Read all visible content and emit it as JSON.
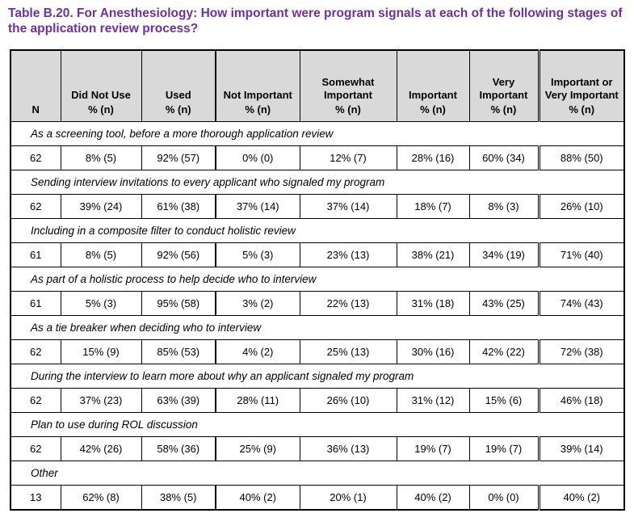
{
  "title": "Table B.20. For Anesthesiology: How important were program signals at each of the following stages of the application review process?",
  "colors": {
    "title_text": "#7030A0",
    "header_background": "#D9D9D9",
    "border": "#000000"
  },
  "table": {
    "n_label": "N",
    "columns": [
      {
        "name": "Did Not Use",
        "sub": "% (n)"
      },
      {
        "name": "Used",
        "sub": "% (n)"
      },
      {
        "name": "Not Important",
        "sub": "% (n)"
      },
      {
        "name": "Somewhat Important",
        "sub": "% (n)"
      },
      {
        "name": "Important",
        "sub": "% (n)"
      },
      {
        "name": "Very Important",
        "sub": "% (n)"
      },
      {
        "name": "Important or Very Important",
        "sub": "% (n)"
      }
    ],
    "sections": [
      {
        "label": "As a screening tool, before a more thorough application review",
        "values": [
          "62",
          "8% (5)",
          "92% (57)",
          "0% (0)",
          "12% (7)",
          "28% (16)",
          "60% (34)",
          "88% (50)"
        ]
      },
      {
        "label": "Sending interview invitations to every applicant who signaled my program",
        "values": [
          "62",
          "39% (24)",
          "61% (38)",
          "37% (14)",
          "37% (14)",
          "18% (7)",
          "8% (3)",
          "26% (10)"
        ]
      },
      {
        "label": "Including in a composite filter to conduct holistic review",
        "values": [
          "61",
          "8% (5)",
          "92% (56)",
          "5% (3)",
          "23% (13)",
          "38% (21)",
          "34% (19)",
          "71% (40)"
        ]
      },
      {
        "label": "As part of a holistic process to help decide who to interview",
        "values": [
          "61",
          "5% (3)",
          "95% (58)",
          "3% (2)",
          "22% (13)",
          "31% (18)",
          "43% (25)",
          "74% (43)"
        ]
      },
      {
        "label": "As a tie breaker when deciding who to interview",
        "values": [
          "62",
          "15% (9)",
          "85% (53)",
          "4% (2)",
          "25% (13)",
          "30% (16)",
          "42% (22)",
          "72% (38)"
        ]
      },
      {
        "label": "During the interview to learn more about why an applicant signaled my program",
        "values": [
          "62",
          "37% (23)",
          "63% (39)",
          "28% (11)",
          "26% (10)",
          "31% (12)",
          "15% (6)",
          "46% (18)"
        ]
      },
      {
        "label": "Plan to use during ROL discussion",
        "values": [
          "62",
          "42% (26)",
          "58% (36)",
          "25% (9)",
          "36% (13)",
          "19% (7)",
          "19% (7)",
          "39% (14)"
        ]
      },
      {
        "label": "Other",
        "values": [
          "13",
          "62% (8)",
          "38% (5)",
          "40% (2)",
          "20% (1)",
          "40% (2)",
          "0% (0)",
          "40% (2)"
        ]
      }
    ]
  }
}
